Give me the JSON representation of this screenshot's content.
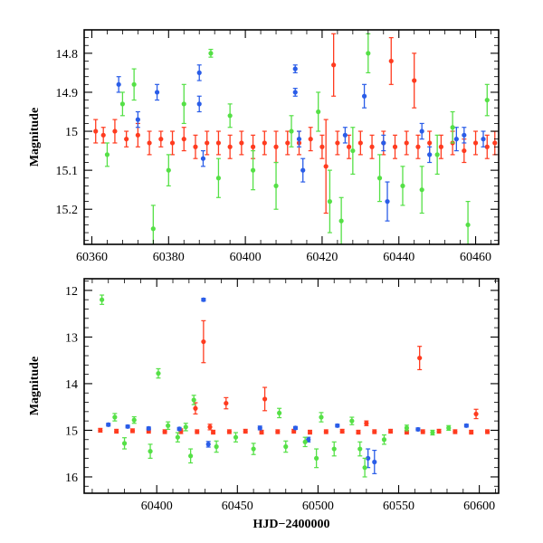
{
  "chart_data": [
    {
      "type": "scatter",
      "title": "",
      "xlabel": "",
      "ylabel": "Magnitude",
      "xlim": [
        60358,
        60466
      ],
      "ylim": [
        15.29,
        14.74
      ],
      "y_inverted": true,
      "x_ticks": [
        60360,
        60380,
        60400,
        60420,
        60440,
        60460
      ],
      "y_ticks": [
        14.8,
        14.9,
        15,
        15.1,
        15.2
      ],
      "x_tick_labels": [
        "60360",
        "60380",
        "60400",
        "60420",
        "60440",
        "60460"
      ],
      "y_tick_labels": [
        "14.8",
        "14.9",
        "15",
        "15.1",
        "15.2"
      ],
      "grid": false,
      "legend": "none",
      "series": [
        {
          "color": "#ff3b1f",
          "marker": "circle",
          "error_bars": true,
          "points": [
            {
              "x": 60361,
              "y": 15.0,
              "e": 0.03
            },
            {
              "x": 60363,
              "y": 15.01,
              "e": 0.02
            },
            {
              "x": 60366,
              "y": 15.0,
              "e": 0.03
            },
            {
              "x": 60369,
              "y": 15.02,
              "e": 0.02
            },
            {
              "x": 60372,
              "y": 15.01,
              "e": 0.03
            },
            {
              "x": 60375,
              "y": 15.03,
              "e": 0.03
            },
            {
              "x": 60378,
              "y": 15.02,
              "e": 0.02
            },
            {
              "x": 60381,
              "y": 15.03,
              "e": 0.03
            },
            {
              "x": 60384,
              "y": 15.02,
              "e": 0.03
            },
            {
              "x": 60387,
              "y": 15.04,
              "e": 0.03
            },
            {
              "x": 60390,
              "y": 15.03,
              "e": 0.03
            },
            {
              "x": 60393,
              "y": 15.03,
              "e": 0.03
            },
            {
              "x": 60396,
              "y": 15.04,
              "e": 0.03
            },
            {
              "x": 60399,
              "y": 15.03,
              "e": 0.03
            },
            {
              "x": 60402,
              "y": 15.04,
              "e": 0.03
            },
            {
              "x": 60405,
              "y": 15.03,
              "e": 0.03
            },
            {
              "x": 60408,
              "y": 15.04,
              "e": 0.04
            },
            {
              "x": 60411,
              "y": 15.03,
              "e": 0.03
            },
            {
              "x": 60414,
              "y": 15.03,
              "e": 0.03
            },
            {
              "x": 60417,
              "y": 15.02,
              "e": 0.03
            },
            {
              "x": 60420,
              "y": 15.04,
              "e": 0.03
            },
            {
              "x": 60421,
              "y": 15.09,
              "e": 0.12
            },
            {
              "x": 60423,
              "y": 14.83,
              "e": 0.08
            },
            {
              "x": 60424,
              "y": 15.03,
              "e": 0.03
            },
            {
              "x": 60427,
              "y": 15.04,
              "e": 0.03
            },
            {
              "x": 60430,
              "y": 15.03,
              "e": 0.03
            },
            {
              "x": 60433,
              "y": 15.04,
              "e": 0.03
            },
            {
              "x": 60436,
              "y": 15.03,
              "e": 0.03
            },
            {
              "x": 60438,
              "y": 14.82,
              "e": 0.06
            },
            {
              "x": 60439,
              "y": 15.04,
              "e": 0.03
            },
            {
              "x": 60442,
              "y": 15.03,
              "e": 0.03
            },
            {
              "x": 60444,
              "y": 14.87,
              "e": 0.07
            },
            {
              "x": 60445,
              "y": 15.04,
              "e": 0.03
            },
            {
              "x": 60448,
              "y": 15.03,
              "e": 0.03
            },
            {
              "x": 60451,
              "y": 15.04,
              "e": 0.03
            },
            {
              "x": 60454,
              "y": 15.03,
              "e": 0.03
            },
            {
              "x": 60457,
              "y": 15.05,
              "e": 0.03
            },
            {
              "x": 60460,
              "y": 15.03,
              "e": 0.03
            },
            {
              "x": 60463,
              "y": 15.04,
              "e": 0.03
            },
            {
              "x": 60465,
              "y": 15.03,
              "e": 0.03
            }
          ]
        },
        {
          "color": "#2a5de8",
          "marker": "circle",
          "error_bars": true,
          "points": [
            {
              "x": 60367,
              "y": 14.88,
              "e": 0.02
            },
            {
              "x": 60372,
              "y": 14.97,
              "e": 0.02
            },
            {
              "x": 60377,
              "y": 14.9,
              "e": 0.02
            },
            {
              "x": 60388,
              "y": 14.85,
              "e": 0.02
            },
            {
              "x": 60388,
              "y": 14.93,
              "e": 0.02
            },
            {
              "x": 60389,
              "y": 15.07,
              "e": 0.02
            },
            {
              "x": 60413,
              "y": 14.84,
              "e": 0.01
            },
            {
              "x": 60413,
              "y": 14.9,
              "e": 0.01
            },
            {
              "x": 60414,
              "y": 15.02,
              "e": 0.02
            },
            {
              "x": 60415,
              "y": 15.1,
              "e": 0.03
            },
            {
              "x": 60426,
              "y": 15.01,
              "e": 0.02
            },
            {
              "x": 60431,
              "y": 14.91,
              "e": 0.03
            },
            {
              "x": 60436,
              "y": 15.03,
              "e": 0.02
            },
            {
              "x": 60437,
              "y": 15.18,
              "e": 0.05
            },
            {
              "x": 60446,
              "y": 15.0,
              "e": 0.02
            },
            {
              "x": 60448,
              "y": 15.06,
              "e": 0.02
            },
            {
              "x": 60455,
              "y": 15.02,
              "e": 0.03
            },
            {
              "x": 60457,
              "y": 15.01,
              "e": 0.02
            },
            {
              "x": 60462,
              "y": 15.02,
              "e": 0.02
            }
          ]
        },
        {
          "color": "#55e046",
          "marker": "circle",
          "error_bars": true,
          "points": [
            {
              "x": 60364,
              "y": 15.06,
              "e": 0.03
            },
            {
              "x": 60368,
              "y": 14.93,
              "e": 0.03
            },
            {
              "x": 60371,
              "y": 14.88,
              "e": 0.04
            },
            {
              "x": 60376,
              "y": 15.25,
              "e": 0.06
            },
            {
              "x": 60380,
              "y": 15.1,
              "e": 0.04
            },
            {
              "x": 60384,
              "y": 14.93,
              "e": 0.05
            },
            {
              "x": 60391,
              "y": 14.8,
              "e": 0.01
            },
            {
              "x": 60393,
              "y": 15.12,
              "e": 0.05
            },
            {
              "x": 60396,
              "y": 14.96,
              "e": 0.03
            },
            {
              "x": 60402,
              "y": 15.1,
              "e": 0.05
            },
            {
              "x": 60408,
              "y": 15.14,
              "e": 0.06
            },
            {
              "x": 60412,
              "y": 15.0,
              "e": 0.04
            },
            {
              "x": 60419,
              "y": 14.95,
              "e": 0.05
            },
            {
              "x": 60422,
              "y": 15.18,
              "e": 0.08
            },
            {
              "x": 60425,
              "y": 15.23,
              "e": 0.06
            },
            {
              "x": 60428,
              "y": 15.05,
              "e": 0.06
            },
            {
              "x": 60432,
              "y": 14.8,
              "e": 0.05
            },
            {
              "x": 60435,
              "y": 15.12,
              "e": 0.06
            },
            {
              "x": 60441,
              "y": 15.14,
              "e": 0.05
            },
            {
              "x": 60446,
              "y": 15.15,
              "e": 0.06
            },
            {
              "x": 60450,
              "y": 15.06,
              "e": 0.05
            },
            {
              "x": 60454,
              "y": 14.99,
              "e": 0.04
            },
            {
              "x": 60458,
              "y": 15.24,
              "e": 0.06
            },
            {
              "x": 60463,
              "y": 14.92,
              "e": 0.04
            }
          ]
        }
      ]
    },
    {
      "type": "scatter",
      "title": "",
      "xlabel": "HJD−2400000",
      "ylabel": "Magnitude",
      "xlim": [
        60355,
        60612
      ],
      "ylim": [
        16.35,
        11.75
      ],
      "y_inverted": true,
      "x_ticks": [
        60400,
        60450,
        60500,
        60550,
        60600
      ],
      "y_ticks": [
        12,
        13,
        14,
        15,
        16
      ],
      "x_tick_labels": [
        "60400",
        "60450",
        "60500",
        "60550",
        "60600"
      ],
      "y_tick_labels": [
        "12",
        "13",
        "14",
        "15",
        "16"
      ],
      "grid": false,
      "legend": "none",
      "series": [
        {
          "color": "#ff3b1f",
          "marker": "circle",
          "error_bars": true,
          "points": [
            {
              "x": 60365,
              "y": 15.0,
              "e": 0.04
            },
            {
              "x": 60375,
              "y": 15.02,
              "e": 0.04
            },
            {
              "x": 60385,
              "y": 15.01,
              "e": 0.04
            },
            {
              "x": 60395,
              "y": 15.02,
              "e": 0.04
            },
            {
              "x": 60405,
              "y": 15.03,
              "e": 0.04
            },
            {
              "x": 60415,
              "y": 15.02,
              "e": 0.05
            },
            {
              "x": 60424,
              "y": 14.53,
              "e": 0.12
            },
            {
              "x": 60425,
              "y": 15.03,
              "e": 0.04
            },
            {
              "x": 60429,
              "y": 13.1,
              "e": 0.45
            },
            {
              "x": 60433,
              "y": 14.93,
              "e": 0.06
            },
            {
              "x": 60435,
              "y": 15.04,
              "e": 0.04
            },
            {
              "x": 60443,
              "y": 14.42,
              "e": 0.12
            },
            {
              "x": 60445,
              "y": 15.03,
              "e": 0.04
            },
            {
              "x": 60455,
              "y": 15.02,
              "e": 0.04
            },
            {
              "x": 60465,
              "y": 15.04,
              "e": 0.04
            },
            {
              "x": 60467,
              "y": 14.33,
              "e": 0.25
            },
            {
              "x": 60475,
              "y": 15.03,
              "e": 0.04
            },
            {
              "x": 60485,
              "y": 15.02,
              "e": 0.04
            },
            {
              "x": 60495,
              "y": 15.04,
              "e": 0.04
            },
            {
              "x": 60505,
              "y": 15.03,
              "e": 0.04
            },
            {
              "x": 60515,
              "y": 15.02,
              "e": 0.04
            },
            {
              "x": 60525,
              "y": 15.04,
              "e": 0.04
            },
            {
              "x": 60530,
              "y": 14.85,
              "e": 0.05
            },
            {
              "x": 60535,
              "y": 15.03,
              "e": 0.04
            },
            {
              "x": 60545,
              "y": 15.02,
              "e": 0.04
            },
            {
              "x": 60555,
              "y": 15.04,
              "e": 0.04
            },
            {
              "x": 60563,
              "y": 13.45,
              "e": 0.25
            },
            {
              "x": 60565,
              "y": 15.03,
              "e": 0.04
            },
            {
              "x": 60575,
              "y": 15.02,
              "e": 0.04
            },
            {
              "x": 60585,
              "y": 15.03,
              "e": 0.04
            },
            {
              "x": 60595,
              "y": 15.04,
              "e": 0.04
            },
            {
              "x": 60598,
              "y": 14.65,
              "e": 0.1
            },
            {
              "x": 60605,
              "y": 15.03,
              "e": 0.04
            }
          ]
        },
        {
          "color": "#2a5de8",
          "marker": "circle",
          "error_bars": true,
          "points": [
            {
              "x": 60370,
              "y": 14.88,
              "e": 0.03
            },
            {
              "x": 60382,
              "y": 14.92,
              "e": 0.03
            },
            {
              "x": 60395,
              "y": 14.96,
              "e": 0.03
            },
            {
              "x": 60414,
              "y": 14.97,
              "e": 0.03
            },
            {
              "x": 60429,
              "y": 12.2,
              "e": 0.03
            },
            {
              "x": 60432,
              "y": 15.3,
              "e": 0.06
            },
            {
              "x": 60464,
              "y": 14.95,
              "e": 0.04
            },
            {
              "x": 60486,
              "y": 14.95,
              "e": 0.03
            },
            {
              "x": 60494,
              "y": 15.2,
              "e": 0.05
            },
            {
              "x": 60512,
              "y": 14.9,
              "e": 0.03
            },
            {
              "x": 60531,
              "y": 15.6,
              "e": 0.2
            },
            {
              "x": 60535,
              "y": 15.68,
              "e": 0.25
            },
            {
              "x": 60562,
              "y": 14.98,
              "e": 0.03
            },
            {
              "x": 60592,
              "y": 14.9,
              "e": 0.03
            }
          ]
        },
        {
          "color": "#55e046",
          "marker": "circle",
          "error_bars": true,
          "points": [
            {
              "x": 60366,
              "y": 12.2,
              "e": 0.1
            },
            {
              "x": 60374,
              "y": 14.72,
              "e": 0.08
            },
            {
              "x": 60380,
              "y": 15.28,
              "e": 0.12
            },
            {
              "x": 60386,
              "y": 14.78,
              "e": 0.07
            },
            {
              "x": 60396,
              "y": 15.45,
              "e": 0.15
            },
            {
              "x": 60401,
              "y": 13.78,
              "e": 0.1
            },
            {
              "x": 60407,
              "y": 14.9,
              "e": 0.08
            },
            {
              "x": 60413,
              "y": 15.15,
              "e": 0.1
            },
            {
              "x": 60418,
              "y": 14.93,
              "e": 0.08
            },
            {
              "x": 60421,
              "y": 15.55,
              "e": 0.15
            },
            {
              "x": 60423,
              "y": 14.35,
              "e": 0.1
            },
            {
              "x": 60437,
              "y": 15.35,
              "e": 0.12
            },
            {
              "x": 60449,
              "y": 15.15,
              "e": 0.1
            },
            {
              "x": 60460,
              "y": 15.4,
              "e": 0.12
            },
            {
              "x": 60476,
              "y": 14.63,
              "e": 0.1
            },
            {
              "x": 60480,
              "y": 15.35,
              "e": 0.12
            },
            {
              "x": 60492,
              "y": 15.25,
              "e": 0.1
            },
            {
              "x": 60499,
              "y": 15.6,
              "e": 0.2
            },
            {
              "x": 60502,
              "y": 14.72,
              "e": 0.1
            },
            {
              "x": 60510,
              "y": 15.4,
              "e": 0.15
            },
            {
              "x": 60521,
              "y": 14.8,
              "e": 0.08
            },
            {
              "x": 60526,
              "y": 15.4,
              "e": 0.15
            },
            {
              "x": 60529,
              "y": 15.8,
              "e": 0.2
            },
            {
              "x": 60541,
              "y": 15.2,
              "e": 0.1
            },
            {
              "x": 60555,
              "y": 14.95,
              "e": 0.06
            },
            {
              "x": 60571,
              "y": 15.05,
              "e": 0.05
            },
            {
              "x": 60581,
              "y": 14.95,
              "e": 0.05
            }
          ]
        }
      ]
    }
  ]
}
